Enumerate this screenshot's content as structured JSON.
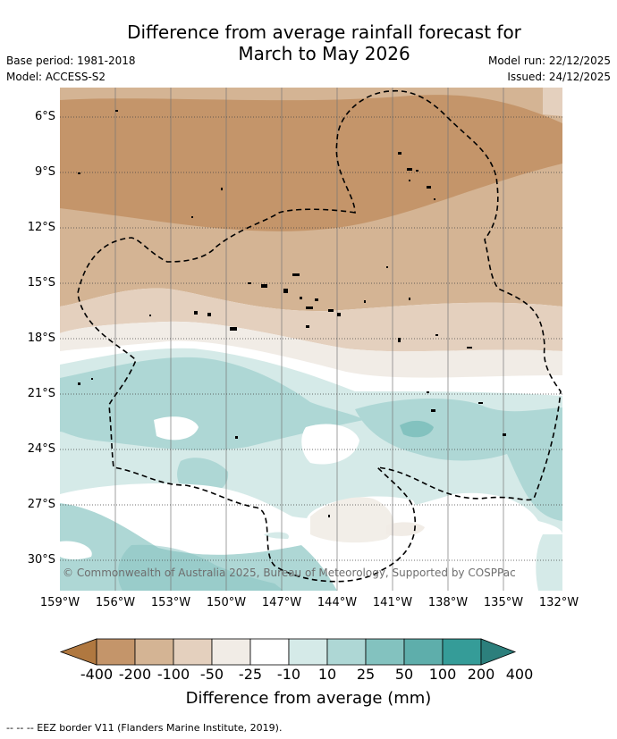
{
  "title_line1": "Difference from average rainfall forecast for",
  "title_line2": "March to May 2026",
  "base_period": "Base period: 1981-2018",
  "model": "Model: ACCESS-S2",
  "model_run": "Model run: 22/12/2025",
  "issued": "Issued: 24/12/2025",
  "lat_labels": [
    "6°S",
    "9°S",
    "12°S",
    "15°S",
    "18°S",
    "21°S",
    "24°S",
    "27°S",
    "30°S"
  ],
  "lon_labels": [
    "159°W",
    "156°W",
    "153°W",
    "150°W",
    "147°W",
    "144°W",
    "141°W",
    "138°W",
    "135°W",
    "132°W"
  ],
  "copyright": "© Commonwealth of Australia 2025, Bureau of Meteorology, Supported by COSPPac",
  "colorbar": {
    "ticks": [
      "-400",
      "-200",
      "-100",
      "-50",
      "-25",
      "-10",
      "10",
      "25",
      "50",
      "100",
      "200",
      "400"
    ],
    "colors": [
      "#b07840",
      "#c4956a",
      "#d4b494",
      "#e4d0be",
      "#f1ece6",
      "#ffffff",
      "#d5eae8",
      "#aed7d5",
      "#83c2bf",
      "#5eaeab",
      "#359c98",
      "#2c7f7c"
    ],
    "label": "Difference from average (mm)"
  },
  "footer": "--  --  -- EEZ border V11 (Flanders Marine Institute, 2019)."
}
